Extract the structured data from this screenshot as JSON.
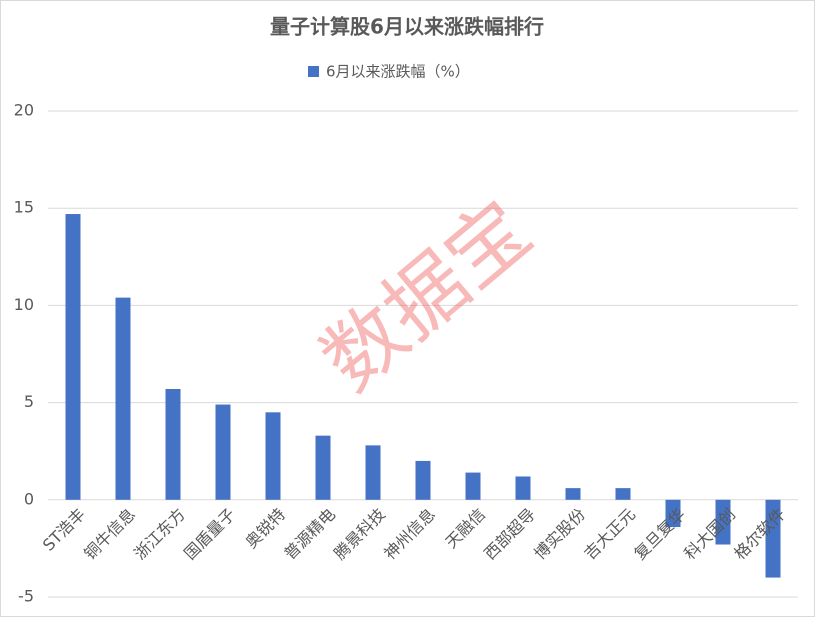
{
  "chart_data": {
    "type": "bar",
    "title": "量子计算股6月以来涨跌幅排行",
    "watermark": "数据宝",
    "categories": [
      "ST浩丰",
      "铜牛信息",
      "浙江东方",
      "国盾量子",
      "奥锐特",
      "普源精电",
      "腾景科技",
      "神州信息",
      "天融信",
      "西部超导",
      "博实股份",
      "吉大正元",
      "复旦复华",
      "科大国创",
      "格尔软件"
    ],
    "series": [
      {
        "name": "6月以来涨跌幅（%）",
        "color": "#4472c4",
        "values": [
          14.7,
          10.4,
          5.7,
          4.9,
          4.5,
          3.3,
          2.8,
          2.0,
          1.4,
          1.2,
          0.6,
          0.6,
          -1.4,
          -2.3,
          -4.0
        ]
      }
    ],
    "ylim": [
      -5,
      20
    ],
    "yticks": [
      -5,
      0,
      5,
      10,
      15,
      20
    ],
    "grid": true
  }
}
